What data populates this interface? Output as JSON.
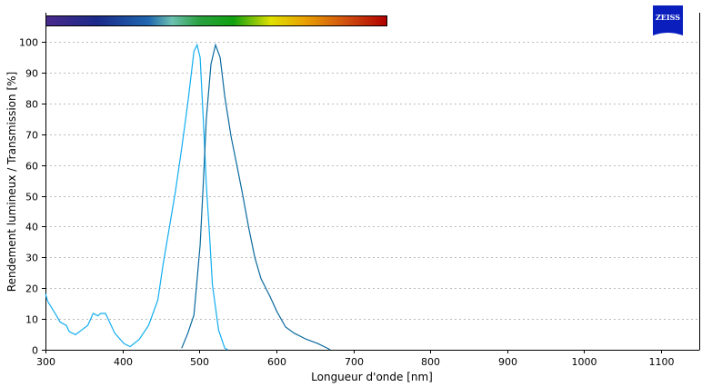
{
  "chart_data": {
    "type": "line",
    "xlabel": "Longueur d'onde [nm]",
    "ylabel": "Rendement lumineux / Transmission [%]",
    "xlim": [
      300,
      1150
    ],
    "ylim": [
      0,
      105
    ],
    "x_ticks": [
      300,
      400,
      500,
      600,
      700,
      800,
      900,
      1000,
      1100
    ],
    "y_ticks": [
      0,
      10,
      20,
      30,
      40,
      50,
      60,
      70,
      80,
      90,
      100
    ],
    "grid": "horizontal dashed",
    "logo_text": "ZEISS",
    "spectrum_bar": {
      "from_nm": 300,
      "to_nm": 745
    },
    "series": [
      {
        "color": "#12aef0",
        "x": [
          300,
          303,
          315,
          319,
          327,
          331,
          339,
          347,
          355,
          362,
          368,
          372,
          378,
          390,
          402,
          410,
          422,
          434,
          446,
          453,
          461,
          469,
          477,
          485,
          493,
          497,
          501,
          505,
          509,
          513,
          517,
          525,
          533,
          537
        ],
        "y": [
          18.2,
          15.7,
          10.8,
          9,
          7.9,
          5.9,
          4.9,
          6.4,
          7.9,
          11.8,
          11,
          11.8,
          11.8,
          5.4,
          2,
          1,
          3.4,
          7.9,
          16.2,
          28,
          39.8,
          51.6,
          65.4,
          80.3,
          96.9,
          99,
          94.9,
          75.2,
          53.6,
          37.9,
          21.1,
          6.4,
          0.5,
          0
        ]
      },
      {
        "color": "#0b6a9e",
        "x": [
          477,
          485,
          493,
          501,
          505,
          509,
          515,
          521,
          527,
          533,
          541,
          549,
          556,
          564,
          572,
          580,
          592,
          601,
          612,
          623,
          639,
          654,
          668,
          670
        ],
        "y": [
          0.5,
          5.4,
          11.3,
          34,
          53.6,
          75,
          92.7,
          99,
          94.9,
          82.2,
          69.4,
          59.6,
          50.6,
          39.8,
          30,
          23.1,
          17.2,
          12.3,
          7.4,
          5.4,
          3.4,
          2,
          0.3,
          0
        ]
      }
    ]
  }
}
